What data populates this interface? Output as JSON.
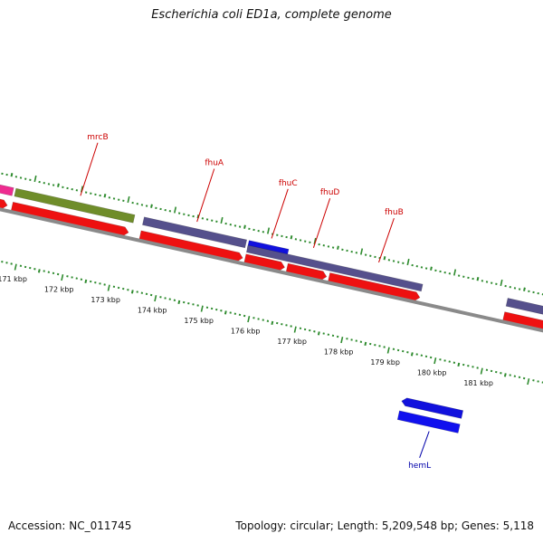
{
  "title": "Escherichia coli ED1a, complete genome",
  "footer": {
    "accession": "Accession: NC_011745",
    "summary": "Topology: circular; Length: 5,209,548 bp; Genes: 5,118"
  },
  "colors": {
    "background": "#ffffff",
    "backbone": "#8a8a8a",
    "tick": "#2e8b2e",
    "cds_forward": "#ee1111",
    "cds_reverse": "#1010ee",
    "gene_purple": "#55508c",
    "gene_green": "#6f8d2a",
    "gene_pink": "#ee2c90",
    "gene_blue": "#1111dd",
    "label_forward": "#cc0000",
    "label_reverse": "#0000aa"
  },
  "axis": {
    "unit": "kbp",
    "ticks": [
      {
        "kbp": 171,
        "label": "171 kbp"
      },
      {
        "kbp": 172,
        "label": "172 kbp"
      },
      {
        "kbp": 173,
        "label": "173 kbp"
      },
      {
        "kbp": 174,
        "label": "174 kbp"
      },
      {
        "kbp": 175,
        "label": "175 kbp"
      },
      {
        "kbp": 176,
        "label": "176 kbp"
      },
      {
        "kbp": 177,
        "label": "177 kbp"
      },
      {
        "kbp": 178,
        "label": "178 kbp"
      },
      {
        "kbp": 179,
        "label": "179 kbp"
      },
      {
        "kbp": 180,
        "label": "180 kbp"
      },
      {
        "kbp": 181,
        "label": "181 kbp"
      }
    ]
  },
  "features": [
    {
      "strand": "+",
      "track": "gene",
      "color": "pink",
      "start": 170.1,
      "end": 170.6,
      "arrow": false
    },
    {
      "strand": "+",
      "track": "cds",
      "color": "red",
      "start": 170.1,
      "end": 170.55,
      "arrow": true
    },
    {
      "strand": "+",
      "track": "gene",
      "color": "green",
      "start": 170.65,
      "end": 173.2,
      "arrow": false
    },
    {
      "strand": "+",
      "track": "cds",
      "color": "red",
      "start": 170.65,
      "end": 173.15,
      "arrow": true
    },
    {
      "strand": "+",
      "track": "gene",
      "color": "purple",
      "start": 173.4,
      "end": 175.6,
      "arrow": false
    },
    {
      "strand": "+",
      "track": "cds",
      "color": "red",
      "start": 173.4,
      "end": 175.6,
      "arrow": true
    },
    {
      "strand": "+",
      "track": "gene",
      "color": "blue",
      "start": 175.65,
      "end": 176.5,
      "arrow": false
    },
    {
      "strand": "+",
      "track": "gene",
      "color": "purple",
      "start": 175.65,
      "end": 179.4,
      "arrow": false,
      "under": true
    },
    {
      "strand": "+",
      "track": "cds",
      "color": "red",
      "start": 175.65,
      "end": 176.5,
      "arrow": true
    },
    {
      "strand": "+",
      "track": "cds",
      "color": "red",
      "start": 176.55,
      "end": 177.4,
      "arrow": true
    },
    {
      "strand": "+",
      "track": "cds",
      "color": "red",
      "start": 177.45,
      "end": 179.4,
      "arrow": true
    },
    {
      "strand": "-",
      "track": "gene",
      "color": "blue",
      "start": 179.5,
      "end": 180.8,
      "arrow": true
    },
    {
      "strand": "-",
      "track": "cds",
      "color": "blue",
      "start": 179.5,
      "end": 180.8,
      "arrow": false
    },
    {
      "strand": "+",
      "track": "gene",
      "color": "purple",
      "start": 181.2,
      "end": 182.2,
      "arrow": false
    },
    {
      "strand": "+",
      "track": "cds",
      "color": "red",
      "start": 181.2,
      "end": 182.2,
      "arrow": false
    }
  ],
  "labels": [
    {
      "text": "mrcB",
      "at": 172.0,
      "strand": "+"
    },
    {
      "text": "fhuA",
      "at": 174.5,
      "strand": "+"
    },
    {
      "text": "fhuC",
      "at": 176.1,
      "strand": "+"
    },
    {
      "text": "fhuD",
      "at": 177.0,
      "strand": "+"
    },
    {
      "text": "fhuB",
      "at": 178.4,
      "strand": "+"
    },
    {
      "text": "hemL",
      "at": 180.2,
      "strand": "-"
    }
  ]
}
